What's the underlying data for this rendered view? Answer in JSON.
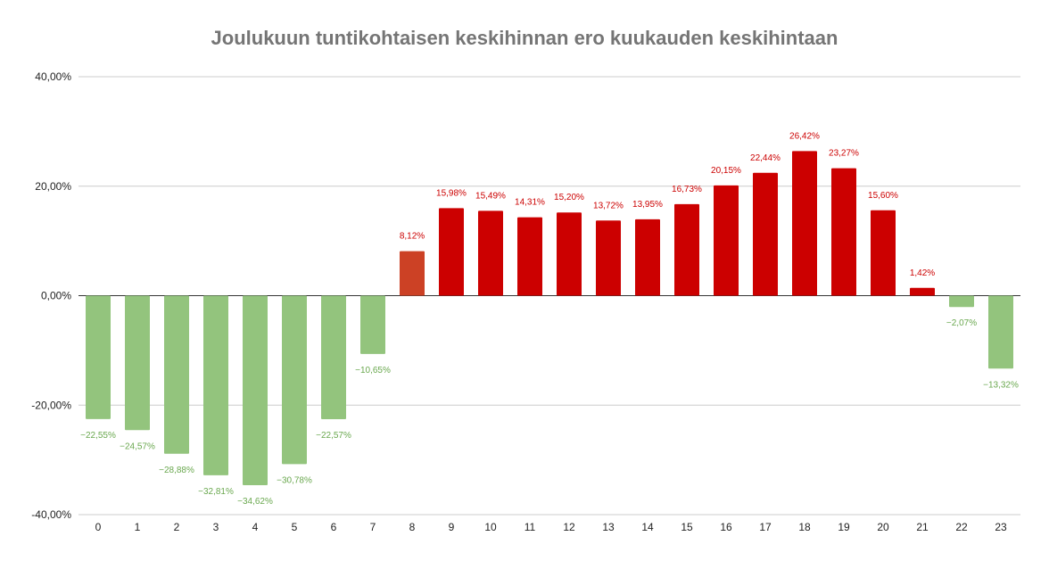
{
  "chart_data": {
    "type": "bar",
    "title": "Joulukuun tuntikohtaisen keskihinnan ero kuukauden keskihintaan",
    "xlabel": "",
    "ylabel": "",
    "categories": [
      "0",
      "1",
      "2",
      "3",
      "4",
      "5",
      "6",
      "7",
      "8",
      "9",
      "10",
      "11",
      "12",
      "13",
      "14",
      "15",
      "16",
      "17",
      "18",
      "19",
      "20",
      "21",
      "22",
      "23"
    ],
    "values": [
      -22.55,
      -24.57,
      -28.88,
      -32.81,
      -34.62,
      -30.78,
      -22.57,
      -10.65,
      8.12,
      15.98,
      15.49,
      14.31,
      15.2,
      13.72,
      13.95,
      16.73,
      20.15,
      22.44,
      26.42,
      23.27,
      15.6,
      1.42,
      -2.07,
      -13.32
    ],
    "data_labels": [
      "−22,55%",
      "−24,57%",
      "−28,88%",
      "−32,81%",
      "−34,62%",
      "−30,78%",
      "−22,57%",
      "−10,65%",
      "8,12%",
      "15,98%",
      "15,49%",
      "14,31%",
      "15,20%",
      "13,72%",
      "13,95%",
      "16,73%",
      "20,15%",
      "22,44%",
      "26,42%",
      "23,27%",
      "15,60%",
      "1,42%",
      "−2,07%",
      "−13,32%"
    ],
    "ylim": [
      -40,
      40
    ],
    "yticks": [
      40,
      20,
      0,
      -20,
      -40
    ],
    "ytick_labels": [
      "40,00%",
      "20,00%",
      "0,00%",
      "-20,00%",
      "-40,00%"
    ],
    "grid": true,
    "colors": {
      "negative": "#93c47d",
      "positive": "#cc0000",
      "highlight": "#cc4125",
      "negative_label": "#6aa84f",
      "positive_label": "#cc0000",
      "grid": "#cccccc",
      "zero_line": "#333333"
    },
    "highlight_index": 8
  }
}
